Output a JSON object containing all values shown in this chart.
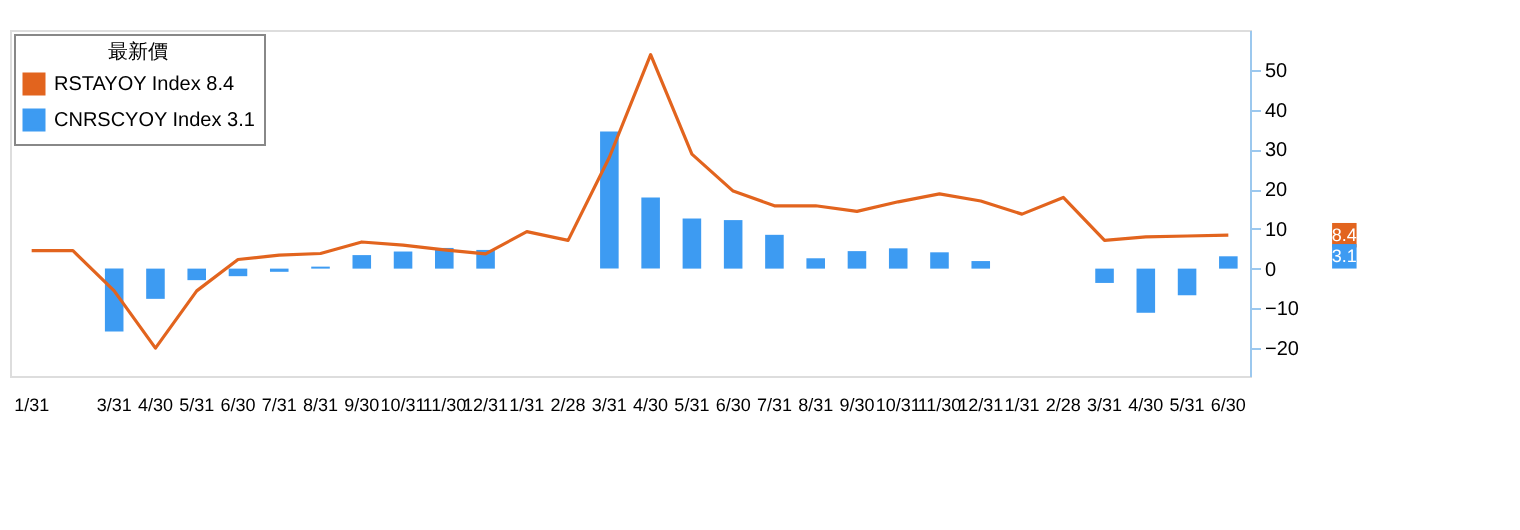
{
  "chart_data": {
    "type": "bar",
    "legend_title": "最新價",
    "legend": "top left",
    "grid": false,
    "categories": [
      "1/31",
      null,
      "3/31",
      "4/30",
      "5/31",
      "6/30",
      "7/31",
      "8/31",
      "9/30",
      "10/31",
      "11/30",
      "12/31",
      "1/31",
      "2/28",
      "3/31",
      "4/30",
      "5/31",
      "6/30",
      "7/31",
      "8/31",
      "9/30",
      "10/31",
      "11/30",
      "12/31",
      "1/31",
      "2/28",
      "3/31",
      "4/30",
      "5/31",
      "6/30"
    ],
    "series": [
      {
        "name": "RSTAYOY Index 8.4",
        "type": "line",
        "color": "#e2641e",
        "values": [
          4.5,
          4.5,
          -5.6,
          -20.0,
          -5.6,
          2.3,
          3.4,
          3.8,
          6.7,
          5.9,
          4.7,
          3.7,
          9.3,
          7.1,
          28,
          53.8,
          28.8,
          19.5,
          15.8,
          15.8,
          14.4,
          16.8,
          18.8,
          17.0,
          13.7,
          17.9,
          7.1,
          8.0,
          8.2,
          8.4
        ]
      },
      {
        "name": "CNRSCYOY Index 3.1",
        "color": "#3d9bf2",
        "values": [
          null,
          null,
          -15.8,
          -7.6,
          -2.9,
          -1.9,
          -0.8,
          0.5,
          3.4,
          4.3,
          5.2,
          4.7,
          null,
          null,
          34.5,
          17.9,
          12.6,
          12.2,
          8.5,
          2.6,
          4.4,
          5.1,
          4.1,
          1.9,
          null,
          null,
          -3.6,
          -11.1,
          -6.7,
          3.1
        ]
      }
    ],
    "ylim": [
      -27,
      60
    ],
    "yticks": [
      -20,
      -10,
      0,
      10,
      20,
      30,
      40,
      50
    ],
    "annotations": [
      "8.4",
      "3.1"
    ]
  }
}
